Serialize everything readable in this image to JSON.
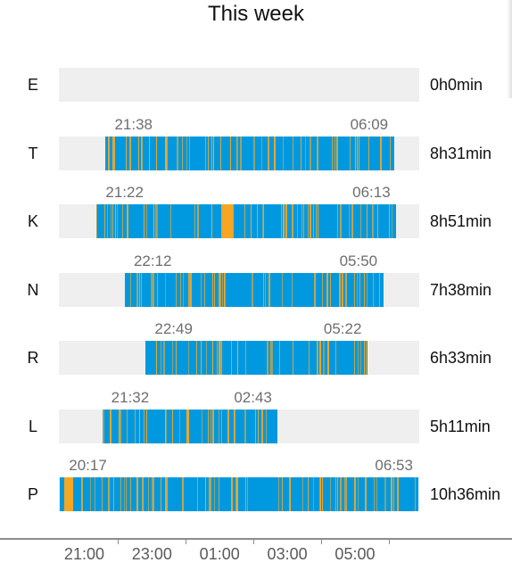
{
  "title": "This week",
  "colors": {
    "asleep": "#0099e0",
    "awake": "#f5a623",
    "track": "#efefef"
  },
  "chart_data": {
    "type": "bar",
    "title": "This week",
    "x_axis_ticks": [
      "21:00",
      "23:00",
      "01:00",
      "03:00",
      "05:00"
    ],
    "x_range": [
      "20:15",
      "07:00"
    ],
    "rows": [
      {
        "day": "E",
        "start": "",
        "end": "",
        "duration": "0h0min"
      },
      {
        "day": "T",
        "start": "21:38",
        "end": "06:09",
        "duration": "8h31min"
      },
      {
        "day": "K",
        "start": "21:22",
        "end": "06:13",
        "duration": "8h51min"
      },
      {
        "day": "N",
        "start": "22:12",
        "end": "05:50",
        "duration": "7h38min"
      },
      {
        "day": "R",
        "start": "22:49",
        "end": "05:22",
        "duration": "6h33min"
      },
      {
        "day": "L",
        "start": "21:32",
        "end": "02:43",
        "duration": "5h11min"
      },
      {
        "day": "P",
        "start": "20:17",
        "end": "06:53",
        "duration": "10h36min"
      }
    ]
  }
}
